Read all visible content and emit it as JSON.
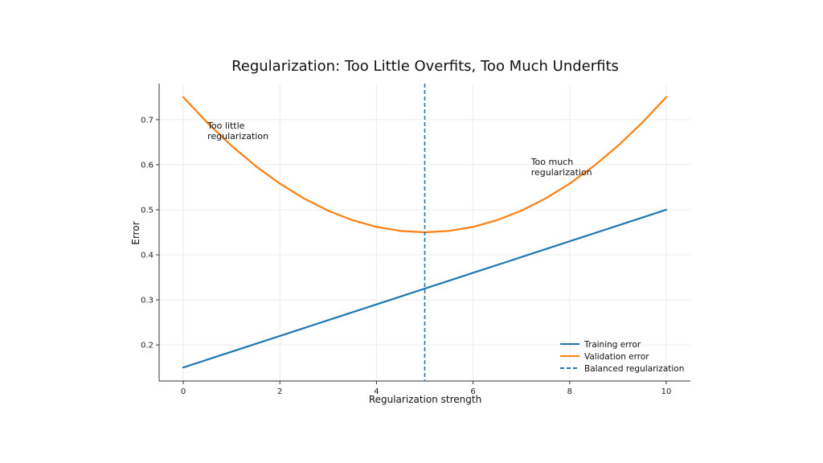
{
  "chart_data": {
    "type": "line",
    "title": "Regularization: Too Little Overfits, Too Much Underfits",
    "xlabel": "Regularization strength",
    "ylabel": "Error",
    "xlim": [
      -0.5,
      10.5
    ],
    "ylim": [
      0.12,
      0.78
    ],
    "xticks": [
      0,
      2,
      4,
      6,
      8,
      10
    ],
    "yticks": [
      0.2,
      0.3,
      0.4,
      0.5,
      0.6,
      0.7
    ],
    "grid": true,
    "legend_position": "lower-right",
    "series": [
      {
        "name": "Training error",
        "color": "#1f77b4",
        "style": "solid",
        "x": [
          0,
          1,
          2,
          3,
          4,
          5,
          6,
          7,
          8,
          9,
          10
        ],
        "y": [
          0.15,
          0.185,
          0.22,
          0.255,
          0.29,
          0.325,
          0.36,
          0.395,
          0.43,
          0.465,
          0.5
        ]
      },
      {
        "name": "Validation error",
        "color": "#ff7f0e",
        "style": "solid",
        "x": [
          0,
          0.5,
          1,
          1.5,
          2,
          2.5,
          3,
          3.5,
          4,
          4.5,
          5,
          5.5,
          6,
          6.5,
          7,
          7.5,
          8,
          8.5,
          9,
          9.5,
          10
        ],
        "y": [
          0.75,
          0.693,
          0.642,
          0.597,
          0.558,
          0.525,
          0.498,
          0.477,
          0.462,
          0.453,
          0.45,
          0.453,
          0.462,
          0.477,
          0.498,
          0.525,
          0.558,
          0.597,
          0.642,
          0.693,
          0.75
        ]
      }
    ],
    "reference_lines": [
      {
        "name": "Balanced regularization",
        "orientation": "vertical",
        "x": 5,
        "color": "#1f77b4",
        "style": "dashed"
      }
    ],
    "annotations": [
      {
        "lines": [
          "Too little",
          "regularization"
        ],
        "x": 0.5,
        "y": 0.68
      },
      {
        "lines": [
          "Too much",
          "regularization"
        ],
        "x": 7.2,
        "y": 0.6
      }
    ]
  }
}
